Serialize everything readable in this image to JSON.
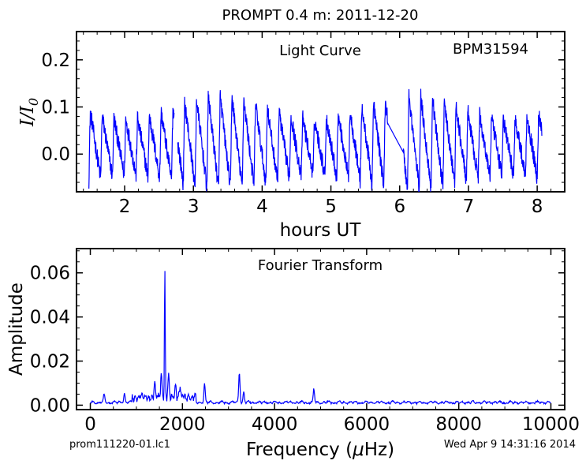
{
  "figure_title": "PROMPT 0.4 m:  2011-12-20",
  "footer": {
    "filename": "prom111220-01.lc1",
    "timestamp": "Wed Apr  9 14:31:16 2014"
  },
  "colors": {
    "series": "#0000ff",
    "axes": "#000000",
    "background": "#ffffff"
  },
  "chart_data": [
    {
      "type": "line",
      "panel": "light_curve",
      "title": "Light Curve",
      "annotation": "BPM31594",
      "xlabel": "hours UT",
      "ylabel": "I/I0",
      "ylabel_main": "I/I",
      "ylabel_sub": "0",
      "xlim": [
        1.3,
        8.4
      ],
      "ylim": [
        -0.08,
        0.26
      ],
      "x_ticks": [
        2,
        3,
        4,
        5,
        6,
        7,
        8
      ],
      "y_ticks": [
        0.0,
        0.1,
        0.2
      ],
      "x_tick_labels": [
        "2",
        "3",
        "4",
        "5",
        "6",
        "7",
        "8"
      ],
      "y_tick_labels": [
        "0.0",
        "0.1",
        "0.2"
      ],
      "grid": false,
      "series": [
        {
          "color": "#0000ff",
          "x_start": 1.48,
          "x_end": 8.07,
          "gaps": [
            [
              2.72,
              2.77
            ],
            [
              5.83,
              6.05
            ]
          ],
          "period_hours": 0.1716,
          "amplitude": 0.085,
          "noise": 0.018
        }
      ]
    },
    {
      "type": "line",
      "panel": "fourier_transform",
      "title": "Fourier Transform",
      "xlabel": "Frequency (μHz)",
      "xlabel_prefix": "Frequency (",
      "xlabel_mu": "μ",
      "xlabel_suffix": "Hz)",
      "ylabel": "Amplitude",
      "xlim": [
        -300,
        10300
      ],
      "ylim": [
        -0.002,
        0.071
      ],
      "x_ticks": [
        0,
        2000,
        4000,
        6000,
        8000,
        10000
      ],
      "y_ticks": [
        0.0,
        0.02,
        0.04,
        0.06
      ],
      "x_tick_labels": [
        "0",
        "2000",
        "4000",
        "6000",
        "8000",
        "10000"
      ],
      "y_tick_labels": [
        "0.00",
        "0.02",
        "0.04",
        "0.06"
      ],
      "grid": false,
      "series": [
        {
          "color": "#0000ff",
          "x_range": [
            0,
            10000
          ],
          "baseline": 0.0012,
          "peaks": [
            {
              "x": 1618,
              "y": 0.0588
            },
            {
              "x": 3236,
              "y": 0.014
            },
            {
              "x": 2480,
              "y": 0.0088
            },
            {
              "x": 1540,
              "y": 0.011
            },
            {
              "x": 1700,
              "y": 0.01
            },
            {
              "x": 1400,
              "y": 0.007
            },
            {
              "x": 4854,
              "y": 0.006
            },
            {
              "x": 3330,
              "y": 0.005
            },
            {
              "x": 1850,
              "y": 0.006
            },
            {
              "x": 1950,
              "y": 0.005
            },
            {
              "x": 740,
              "y": 0.0045
            },
            {
              "x": 300,
              "y": 0.0035
            }
          ]
        }
      ]
    }
  ]
}
